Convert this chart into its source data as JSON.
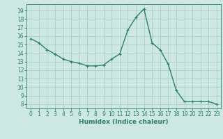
{
  "x": [
    0,
    1,
    2,
    3,
    4,
    5,
    6,
    7,
    8,
    9,
    10,
    11,
    12,
    13,
    14,
    15,
    16,
    17,
    18,
    19,
    20,
    21,
    22,
    23
  ],
  "y": [
    15.7,
    15.2,
    14.4,
    13.9,
    13.3,
    13.0,
    12.8,
    12.5,
    12.5,
    12.6,
    13.3,
    13.9,
    16.7,
    18.2,
    19.2,
    15.2,
    14.4,
    12.7,
    9.6,
    8.3,
    8.3,
    8.3,
    8.3,
    8.0
  ],
  "line_color": "#2d7d6e",
  "marker": "+",
  "marker_size": 3,
  "bg_color": "#cce8e0",
  "grid_color": "#aacfc8",
  "xlabel": "Humidex (Indice chaleur)",
  "xlim": [
    -0.5,
    23.5
  ],
  "ylim": [
    7.5,
    19.75
  ],
  "yticks": [
    8,
    9,
    10,
    11,
    12,
    13,
    14,
    15,
    16,
    17,
    18,
    19
  ],
  "xticks": [
    0,
    1,
    2,
    3,
    4,
    5,
    6,
    7,
    8,
    9,
    10,
    11,
    12,
    13,
    14,
    15,
    16,
    17,
    18,
    19,
    20,
    21,
    22,
    23
  ],
  "tick_color": "#2d7d6e",
  "label_color": "#2d7d6e",
  "spine_color": "#2d7d6e",
  "line_width": 1.0,
  "tick_fontsize": 5.5,
  "xlabel_fontsize": 6.5
}
